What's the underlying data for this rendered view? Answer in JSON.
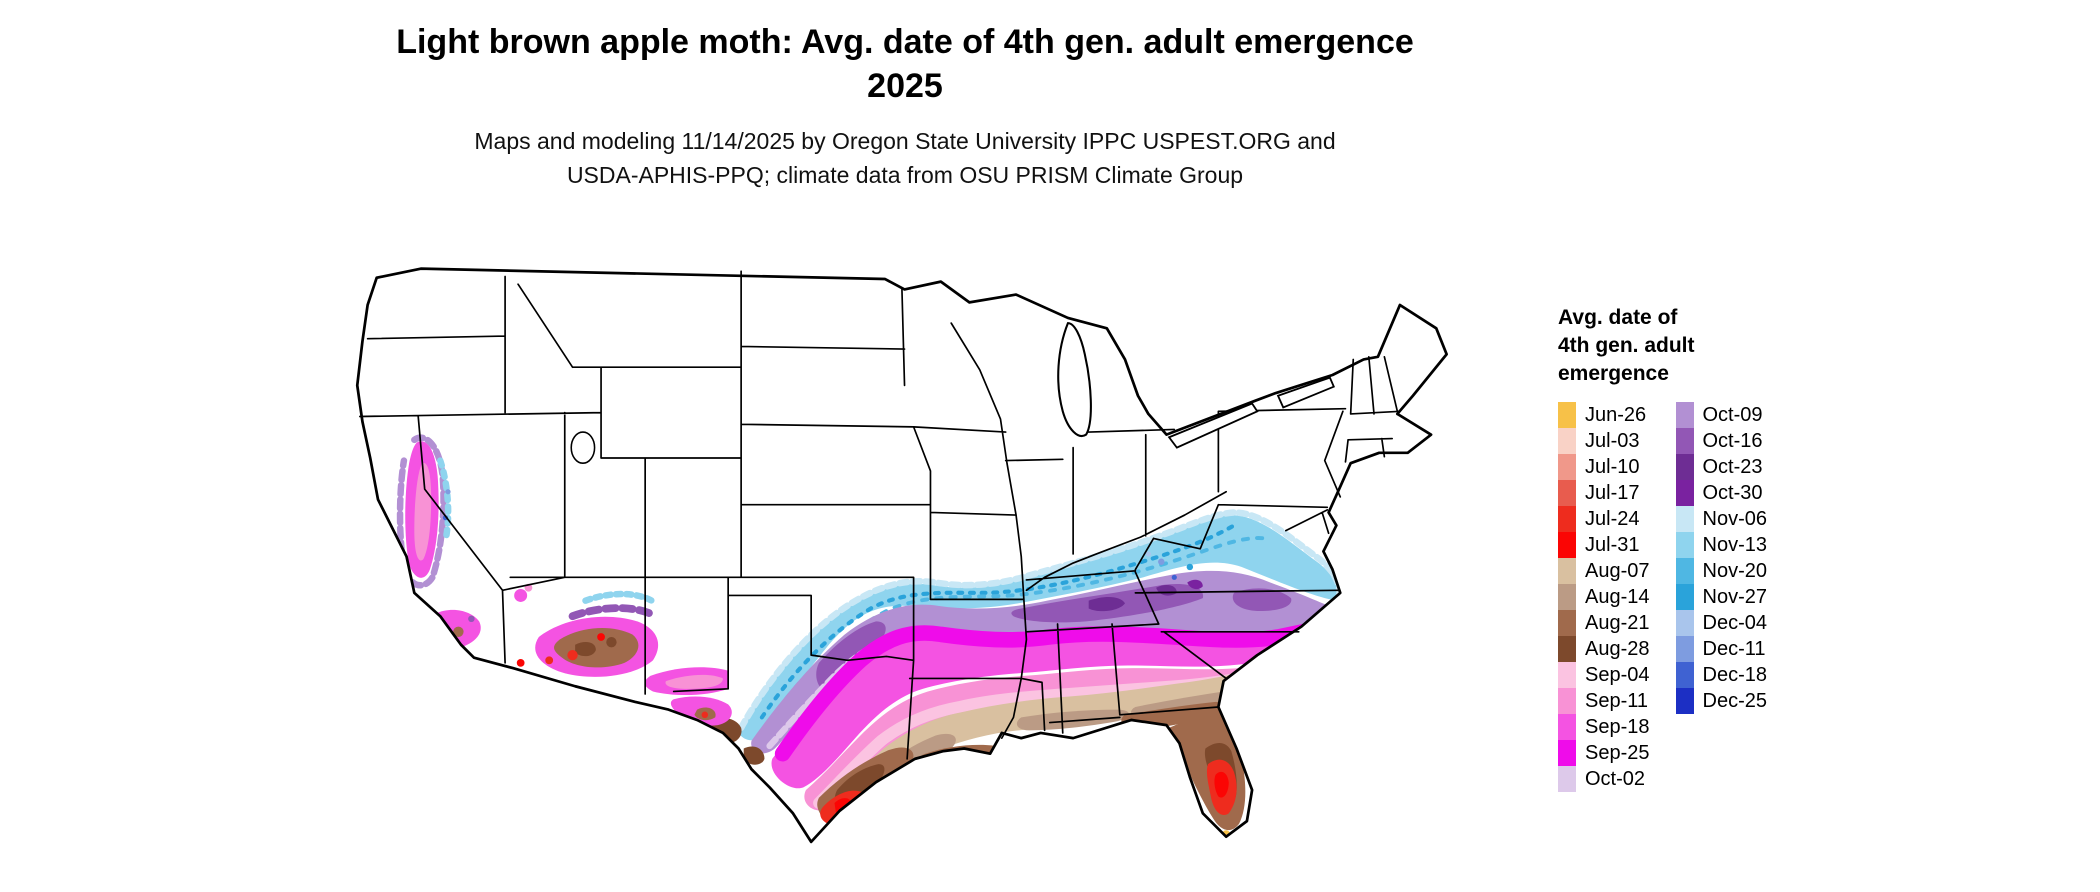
{
  "title": {
    "line1": "Light brown apple moth: Avg. date of 4th gen. adult emergence",
    "line2": "2025"
  },
  "subtitle": {
    "line1": "Maps and modeling 11/14/2025 by Oregon State University IPPC USPEST.ORG and",
    "line2": "USDA-APHIS-PPQ; climate data from OSU PRISM Climate Group"
  },
  "legend": {
    "title_lines": [
      "Avg. date of",
      "4th gen. adult",
      "emergence"
    ],
    "column1": [
      {
        "label": "Jun-26",
        "color": "#f7c148"
      },
      {
        "label": "Jul-03",
        "color": "#f9d2c6"
      },
      {
        "label": "Jul-10",
        "color": "#f0988a"
      },
      {
        "label": "Jul-17",
        "color": "#e85c4e"
      },
      {
        "label": "Jul-24",
        "color": "#ee2c1e"
      },
      {
        "label": "Jul-31",
        "color": "#fb0504"
      },
      {
        "label": "Aug-07",
        "color": "#d9c0a0"
      },
      {
        "label": "Aug-14",
        "color": "#bb9b85"
      },
      {
        "label": "Aug-21",
        "color": "#a06a4c"
      },
      {
        "label": "Aug-28",
        "color": "#7d492c"
      },
      {
        "label": "Sep-04",
        "color": "#fbc3e1"
      },
      {
        "label": "Sep-11",
        "color": "#f892d5"
      },
      {
        "label": "Sep-18",
        "color": "#f453e2"
      },
      {
        "label": "Sep-25",
        "color": "#ef0cea"
      },
      {
        "label": "Oct-02",
        "color": "#ddc9ea"
      }
    ],
    "column2": [
      {
        "label": "Oct-09",
        "color": "#b290d3"
      },
      {
        "label": "Oct-16",
        "color": "#9257b5"
      },
      {
        "label": "Oct-23",
        "color": "#6e2d94"
      },
      {
        "label": "Oct-30",
        "color": "#7a22a0"
      },
      {
        "label": "Nov-06",
        "color": "#c8e7f5"
      },
      {
        "label": "Nov-13",
        "color": "#8fd4ee"
      },
      {
        "label": "Nov-20",
        "color": "#4fb7e3"
      },
      {
        "label": "Nov-27",
        "color": "#2aa3da"
      },
      {
        "label": "Dec-04",
        "color": "#a9c5ec"
      },
      {
        "label": "Dec-11",
        "color": "#7e9ce0"
      },
      {
        "label": "Dec-18",
        "color": "#3f62d2"
      },
      {
        "label": "Dec-25",
        "color": "#1c2fc4"
      }
    ]
  }
}
